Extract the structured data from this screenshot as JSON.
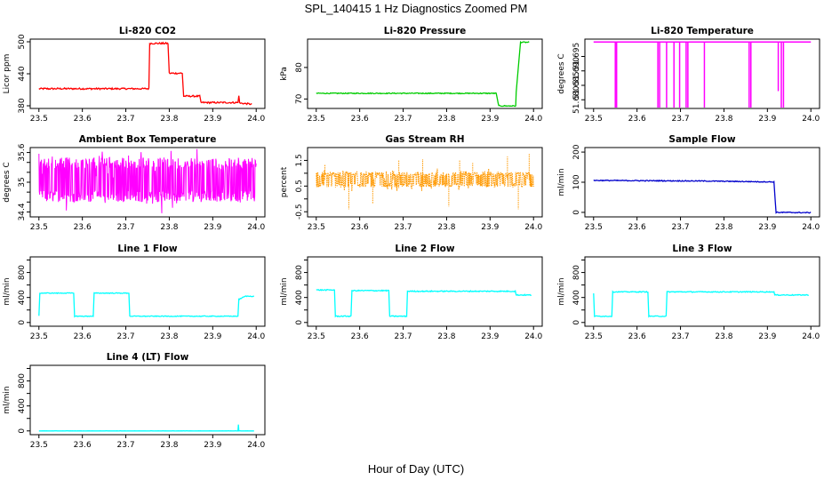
{
  "figure": {
    "title": "SPL_140415  1 Hz Diagnostics Zoomed PM",
    "xlabel": "Hour of Day (UTC)"
  },
  "chart_data": [
    {
      "type": "line",
      "title": "Li-820 CO2",
      "ylabel": "Licor ppm",
      "color": "#ff0000",
      "xlim": [
        23.48,
        24.02
      ],
      "ylim": [
        375,
        505
      ],
      "xticks": [
        23.5,
        23.6,
        23.7,
        23.8,
        23.9,
        24.0
      ],
      "yticks": [
        380,
        440,
        500
      ],
      "x": [
        23.5,
        23.652,
        23.753,
        23.755,
        23.797,
        23.8,
        23.83,
        23.833,
        23.87,
        23.873,
        23.958,
        23.96,
        23.962,
        23.99
      ],
      "y": [
        412,
        412,
        412,
        497,
        497,
        441,
        441,
        398,
        398,
        386,
        386,
        400,
        385,
        383
      ],
      "noise": 1.5
    },
    {
      "type": "line",
      "title": "Li-820 Pressure",
      "ylabel": "kPa",
      "color": "#00cc00",
      "xlim": [
        23.48,
        24.02
      ],
      "ylim": [
        67,
        89
      ],
      "xticks": [
        23.5,
        23.6,
        23.7,
        23.8,
        23.9,
        24.0
      ],
      "yticks": [
        70,
        80
      ],
      "x": [
        23.5,
        23.914,
        23.92,
        23.959,
        23.96,
        23.965,
        23.97,
        23.99
      ],
      "y": [
        71.8,
        71.8,
        67.8,
        67.8,
        72,
        80,
        88,
        88
      ],
      "noise": 0.15
    },
    {
      "type": "line",
      "title": "Li-820 Temperature",
      "ylabel": "degrees C",
      "color": "#ff00ff",
      "xlim": [
        23.48,
        24.02
      ],
      "ylim": [
        51.677,
        51.701
      ],
      "xticks": [
        23.5,
        23.6,
        23.7,
        23.8,
        23.9,
        24.0
      ],
      "yticks": [
        51.68,
        51.685,
        51.69,
        51.695
      ],
      "baseline": 51.7,
      "dips": [
        {
          "x": 23.55,
          "y": 51.677
        },
        {
          "x": 23.553,
          "y": 51.677
        },
        {
          "x": 23.648,
          "y": 51.677
        },
        {
          "x": 23.652,
          "y": 51.677
        },
        {
          "x": 23.668,
          "y": 51.677
        },
        {
          "x": 23.685,
          "y": 51.677
        },
        {
          "x": 23.698,
          "y": 51.677
        },
        {
          "x": 23.713,
          "y": 51.677
        },
        {
          "x": 23.717,
          "y": 51.677
        },
        {
          "x": 23.755,
          "y": 51.677
        },
        {
          "x": 23.858,
          "y": 51.677
        },
        {
          "x": 23.862,
          "y": 51.677
        },
        {
          "x": 23.925,
          "y": 51.683
        },
        {
          "x": 23.932,
          "y": 51.677
        },
        {
          "x": 23.937,
          "y": 51.677
        }
      ]
    },
    {
      "type": "noise",
      "title": "Ambient Box Temperature",
      "ylabel": "degrees C",
      "color": "#ff00ff",
      "xlim": [
        23.48,
        24.02
      ],
      "ylim": [
        34.3,
        35.7
      ],
      "xticks": [
        23.5,
        23.6,
        23.7,
        23.8,
        23.9,
        24.0
      ],
      "yticks": [
        34.4,
        34.6,
        34.8,
        35.0,
        35.2,
        35.4,
        35.6
      ],
      "ytick_labels_shown": [
        34.4,
        35.0,
        35.6
      ],
      "center": 35.0,
      "low": 34.6,
      "high": 35.5,
      "xmax": 24.0
    },
    {
      "type": "noise",
      "title": "Gas Stream RH",
      "ylabel": "percent",
      "color": "#ff9900",
      "xlim": [
        23.48,
        24.02
      ],
      "ylim": [
        -0.7,
        2.0
      ],
      "xticks": [
        23.5,
        23.6,
        23.7,
        23.8,
        23.9,
        24.0
      ],
      "yticks": [
        -0.5,
        0.0,
        0.5,
        1.0,
        1.5
      ],
      "ytick_labels_shown": [
        -0.5,
        0.5,
        1.5
      ],
      "center": 0.75,
      "low": 0.45,
      "high": 1.05,
      "xmax": 24.0,
      "spikes": [
        {
          "x": 23.575,
          "y": -0.4
        },
        {
          "x": 23.69,
          "y": 1.5
        },
        {
          "x": 23.745,
          "y": 1.55
        },
        {
          "x": 23.805,
          "y": -0.3
        },
        {
          "x": 23.83,
          "y": 1.5
        },
        {
          "x": 23.94,
          "y": 1.65
        },
        {
          "x": 23.965,
          "y": -0.4
        },
        {
          "x": 23.99,
          "y": 1.75
        },
        {
          "x": 23.52,
          "y": 1.35
        },
        {
          "x": 23.63,
          "y": -0.2
        },
        {
          "x": 23.86,
          "y": 1.4
        }
      ],
      "dotted": true
    },
    {
      "type": "line",
      "title": "Sample Flow",
      "ylabel": "ml/min",
      "color": "#0000cc",
      "xlim": [
        23.48,
        24.02
      ],
      "ylim": [
        -15,
        215
      ],
      "xticks": [
        23.5,
        23.6,
        23.7,
        23.8,
        23.9,
        24.0
      ],
      "yticks": [
        0,
        100,
        200
      ],
      "x": [
        23.5,
        23.75,
        23.915,
        23.918,
        23.92,
        24.0
      ],
      "y": [
        106,
        104,
        101,
        40,
        0,
        -1
      ],
      "noise": 1.5
    },
    {
      "type": "line",
      "title": "Line 1 Flow",
      "ylabel": "ml/min",
      "color": "#00ffff",
      "xlim": [
        23.48,
        24.02
      ],
      "ylim": [
        -60,
        1050
      ],
      "xticks": [
        23.5,
        23.6,
        23.7,
        23.8,
        23.9,
        24.0
      ],
      "yticks": [
        0,
        200,
        400,
        600,
        800,
        1000
      ],
      "ytick_labels_shown": [
        0,
        400,
        800
      ],
      "x": [
        23.5,
        23.502,
        23.58,
        23.582,
        23.625,
        23.627,
        23.707,
        23.709,
        23.958,
        23.96,
        23.975,
        23.995
      ],
      "y": [
        100,
        470,
        470,
        100,
        100,
        470,
        470,
        100,
        100,
        370,
        420,
        420
      ],
      "noise": 6
    },
    {
      "type": "line",
      "title": "Line 2 Flow",
      "ylabel": "ml/min",
      "color": "#00ffff",
      "xlim": [
        23.48,
        24.02
      ],
      "ylim": [
        -60,
        1050
      ],
      "xticks": [
        23.5,
        23.6,
        23.7,
        23.8,
        23.9,
        24.0
      ],
      "yticks": [
        0,
        200,
        400,
        600,
        800,
        1000
      ],
      "ytick_labels_shown": [
        0,
        400,
        800
      ],
      "x": [
        23.5,
        23.542,
        23.544,
        23.58,
        23.582,
        23.667,
        23.669,
        23.708,
        23.71,
        23.958,
        23.96,
        23.995
      ],
      "y": [
        520,
        520,
        100,
        100,
        510,
        510,
        100,
        100,
        500,
        500,
        440,
        440
      ],
      "noise": 8
    },
    {
      "type": "line",
      "title": "Line 3 Flow",
      "ylabel": "ml/min",
      "color": "#00ffff",
      "xlim": [
        23.48,
        24.02
      ],
      "ylim": [
        -60,
        1050
      ],
      "xticks": [
        23.5,
        23.6,
        23.7,
        23.8,
        23.9,
        24.0
      ],
      "yticks": [
        0,
        200,
        400,
        600,
        800,
        1000
      ],
      "ytick_labels_shown": [
        0,
        400,
        800
      ],
      "x": [
        23.5,
        23.502,
        23.542,
        23.544,
        23.625,
        23.627,
        23.667,
        23.669,
        23.915,
        23.917,
        23.995
      ],
      "y": [
        470,
        100,
        100,
        490,
        490,
        100,
        100,
        490,
        490,
        440,
        440
      ],
      "noise": 7
    },
    {
      "type": "line",
      "title": "Line 4 (LT) Flow",
      "ylabel": "ml/min",
      "color": "#00ffff",
      "xlim": [
        23.48,
        24.02
      ],
      "ylim": [
        -60,
        1050
      ],
      "xticks": [
        23.5,
        23.6,
        23.7,
        23.8,
        23.9,
        24.0
      ],
      "yticks": [
        0,
        200,
        400,
        600,
        800,
        1000
      ],
      "ytick_labels_shown": [
        0,
        400,
        800
      ],
      "x": [
        23.5,
        23.958,
        23.959,
        23.96,
        23.995
      ],
      "y": [
        0,
        0,
        100,
        0,
        0
      ],
      "noise": 1
    }
  ]
}
